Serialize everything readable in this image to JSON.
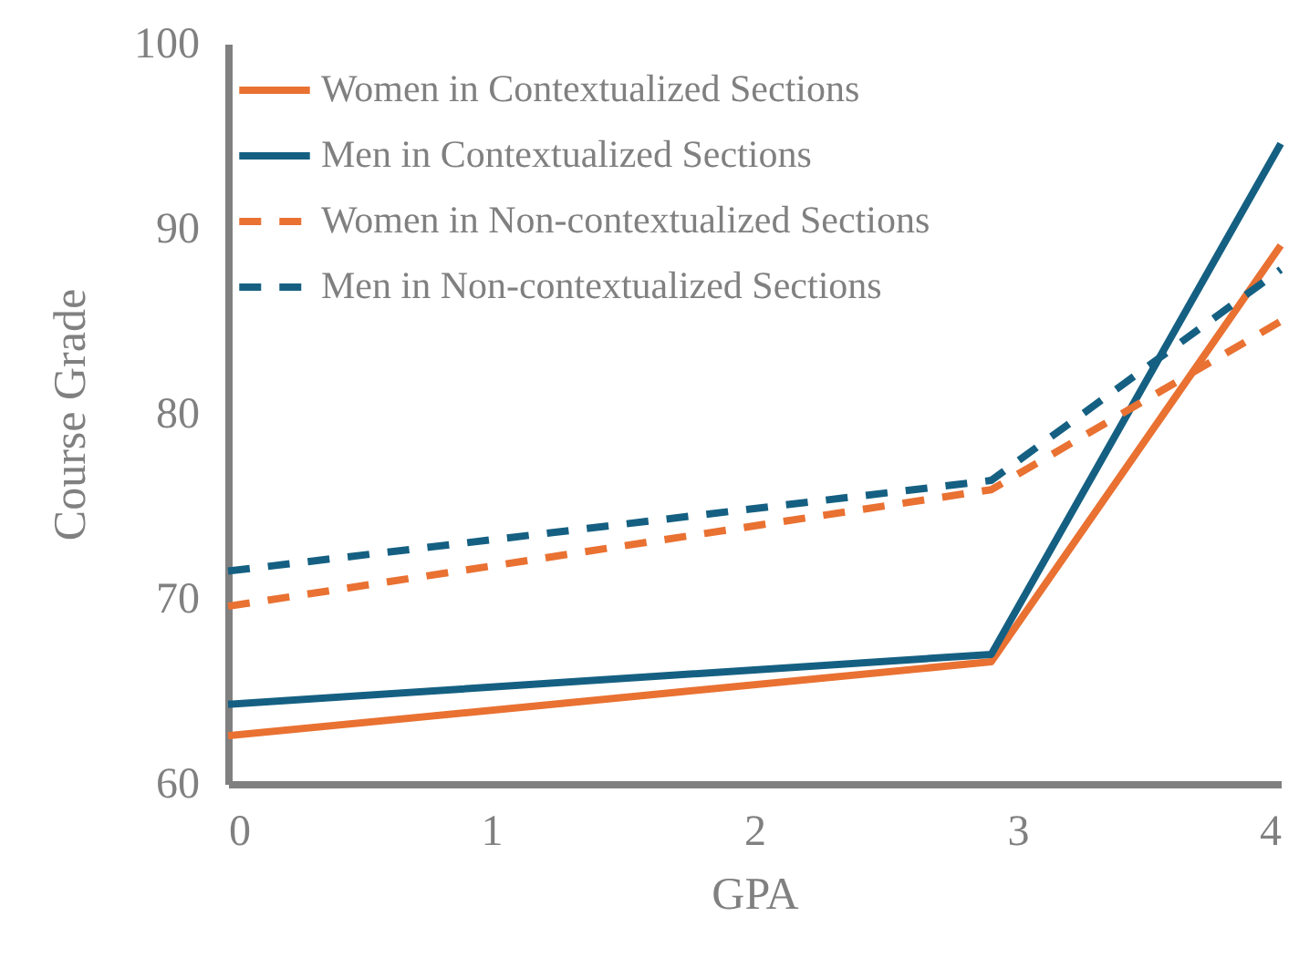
{
  "chart_data": {
    "type": "line",
    "xlabel": "GPA",
    "ylabel": "Course Grade",
    "x": [
      0,
      2.9,
      4
    ],
    "xlim": [
      0,
      4
    ],
    "xticks": [
      0,
      1,
      2,
      3,
      4
    ],
    "ylim": [
      60,
      100
    ],
    "yticks": [
      60,
      70,
      80,
      90,
      100
    ],
    "legend": "top left",
    "marker": "none",
    "series": [
      {
        "name": "Women in Contextualized Sections",
        "color": "#e97132",
        "line_style": "solid",
        "values": [
          62.6,
          66.6,
          89.1
        ]
      },
      {
        "name": "Men in Contextualized Sections",
        "color": "#156082",
        "line_style": "solid",
        "values": [
          64.3,
          67.0,
          94.6
        ]
      },
      {
        "name": "Women in Non-contextualized Sections",
        "color": "#e97132",
        "line_style": "dashed",
        "values": [
          69.6,
          75.9,
          85.0
        ]
      },
      {
        "name": "Men in Non-contextualized Sections",
        "color": "#156082",
        "line_style": "dashed",
        "values": [
          71.5,
          76.4,
          87.8
        ]
      }
    ]
  }
}
